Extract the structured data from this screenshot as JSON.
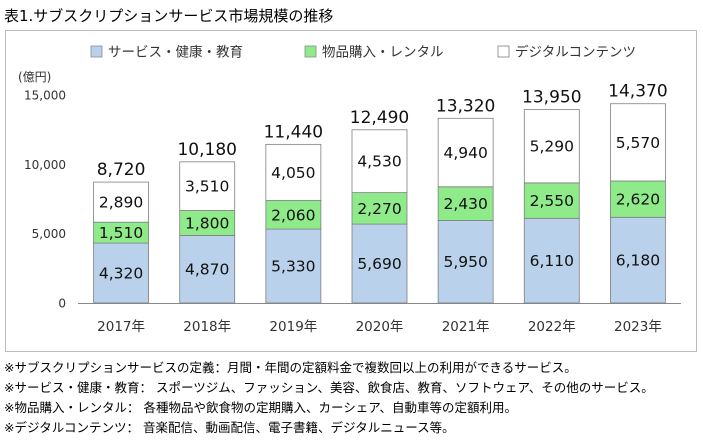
{
  "title": "表1.サブスクリプションサービス市場規模の推移",
  "chart_data": {
    "type": "bar",
    "stacked": true,
    "unit_label": "(億円)",
    "categories": [
      "2017年",
      "2018年",
      "2019年",
      "2020年",
      "2021年",
      "2022年",
      "2023年"
    ],
    "series": [
      {
        "name": "サービス・健康・教育",
        "color": "#b9d1ea",
        "values": [
          4320,
          4870,
          5330,
          5690,
          5950,
          6110,
          6180
        ]
      },
      {
        "name": "物品購入・レンタル",
        "color": "#8fea8a",
        "values": [
          1510,
          1800,
          2060,
          2270,
          2430,
          2550,
          2620
        ]
      },
      {
        "name": "デジタルコンテンツ",
        "color": "#ffffff",
        "values": [
          2890,
          3510,
          4050,
          4530,
          4940,
          5290,
          5570
        ]
      }
    ],
    "totals": [
      8720,
      10180,
      11440,
      12490,
      13320,
      13950,
      14370
    ],
    "ylim": [
      0,
      15000
    ],
    "yticks": [
      0,
      5000,
      10000,
      15000
    ],
    "ytick_labels": [
      "0",
      "5,000",
      "10,000",
      "15,000"
    ],
    "legend_position": "top",
    "grid": false
  },
  "notes": [
    "※サブスクリプションサービスの定義：月間・年間の定額料金で複数回以上の利用ができるサービス。",
    "※サービス・健康・教育：  スポーツジム、ファッション、美容、飲食店、教育、ソフトウェア、その他のサービス。",
    "※物品購入・レンタル：  各種物品や飲食物の定期購入、カーシェア、自動車等の定額利用。",
    "※デジタルコンテンツ：  音楽配信、動画配信、電子書籍、デジタルニュース等。"
  ]
}
